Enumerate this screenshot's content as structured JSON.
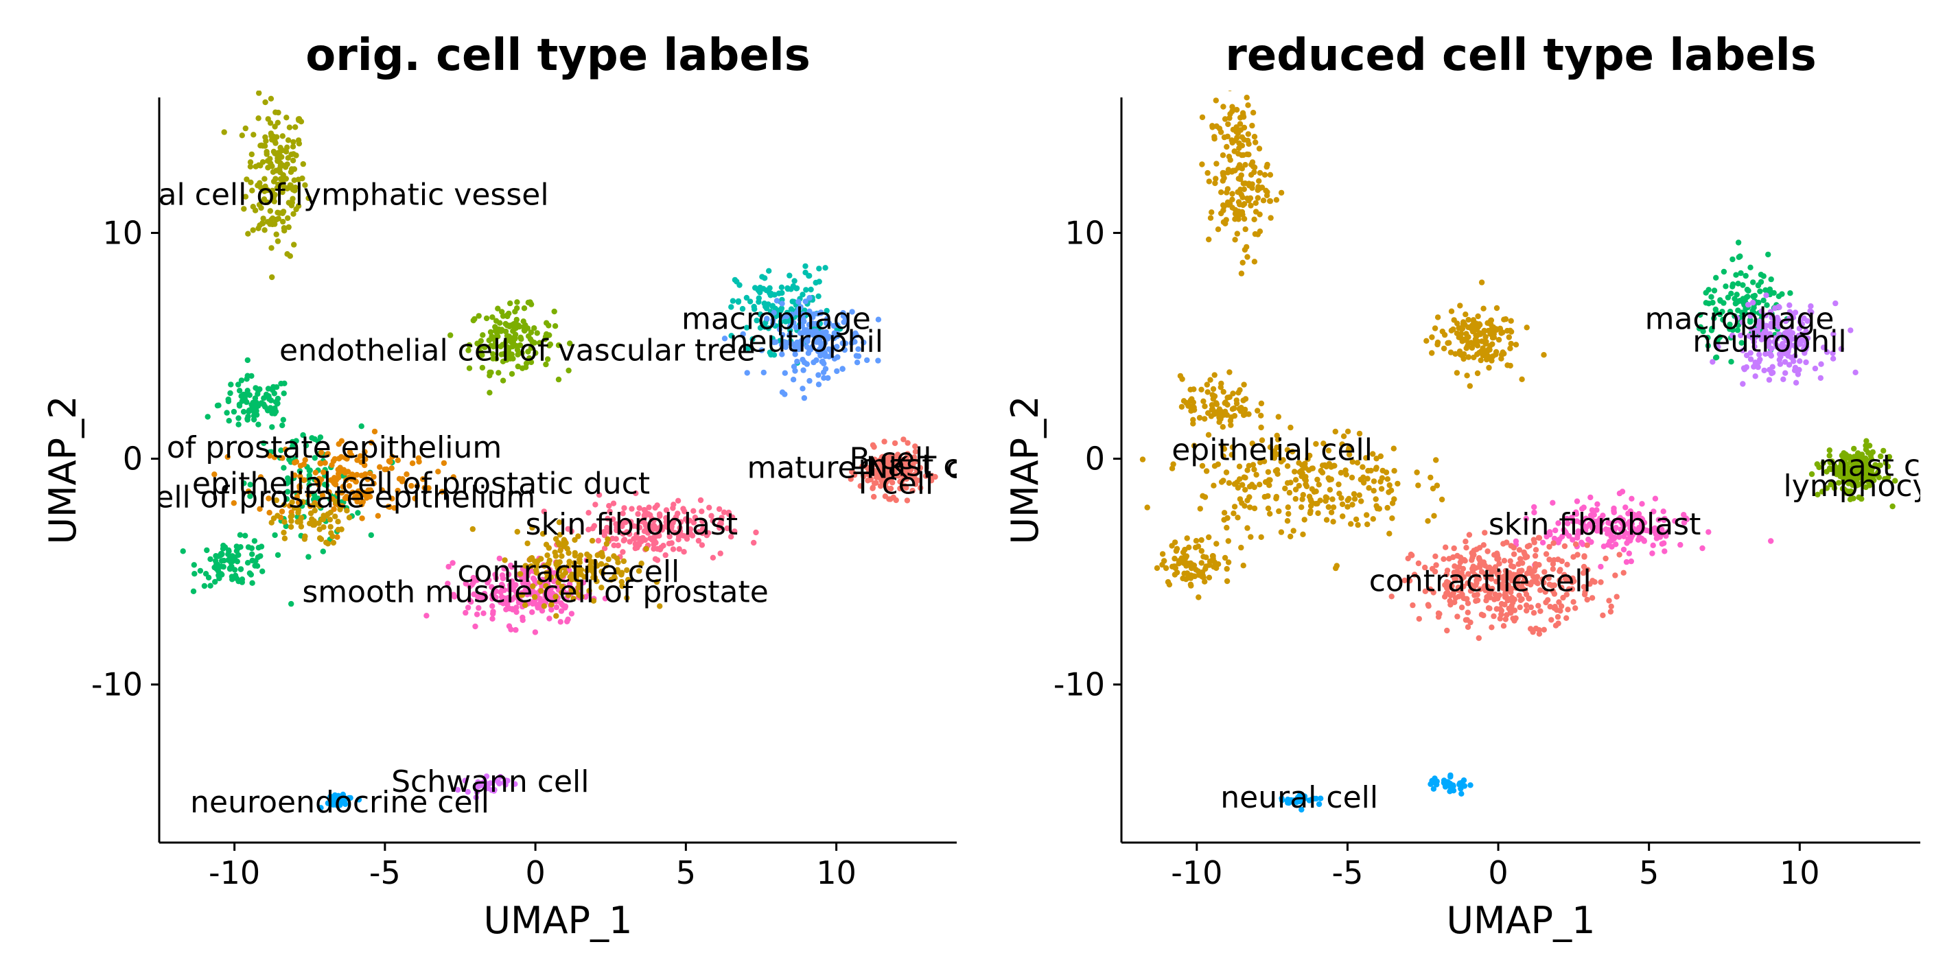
{
  "chart_data": [
    {
      "type": "scatter",
      "title": "orig. cell type labels",
      "xlabel": "UMAP_1",
      "ylabel": "UMAP_2",
      "xlim": [
        -12.5,
        14
      ],
      "ylim": [
        -17,
        16
      ],
      "xticks": [
        -10,
        -5,
        0,
        5,
        10
      ],
      "yticks": [
        -10,
        0,
        10
      ],
      "xtick_labels": [
        "-10",
        "-5",
        "0",
        "5",
        "10"
      ],
      "ytick_labels": [
        "-10",
        "0",
        "10"
      ],
      "grid": false,
      "legend": "none",
      "clusters": [
        {
          "color": "#A3A500",
          "center": [
            -8.6,
            12.5
          ],
          "spread": [
            0.5,
            1.7
          ],
          "n": 180
        },
        {
          "color": "#7CAE00",
          "center": [
            -0.8,
            5.3
          ],
          "spread": [
            0.7,
            0.7
          ],
          "n": 150
        },
        {
          "color": "#00BE67",
          "center": [
            -9.3,
            2.4
          ],
          "spread": [
            0.6,
            0.6
          ],
          "n": 90
        },
        {
          "color": "#00BE67",
          "center": [
            -10,
            -4.6
          ],
          "spread": [
            0.6,
            0.5
          ],
          "n": 90
        },
        {
          "color": "#00BE67",
          "center": [
            -7.6,
            -1.2
          ],
          "spread": [
            0.9,
            1.3
          ],
          "n": 90
        },
        {
          "color": "#E58700",
          "center": [
            -6.3,
            -0.9
          ],
          "spread": [
            1.5,
            0.9
          ],
          "n": 160
        },
        {
          "color": "#C99800",
          "center": [
            -7.6,
            -2.8
          ],
          "spread": [
            0.6,
            0.5
          ],
          "n": 60
        },
        {
          "color": "#00C0AF",
          "center": [
            8.3,
            6.6
          ],
          "spread": [
            0.8,
            0.9
          ],
          "n": 140
        },
        {
          "color": "#619CFF",
          "center": [
            9.3,
            5.2
          ],
          "spread": [
            0.8,
            0.8
          ],
          "n": 180
        },
        {
          "color": "#F8766D",
          "center": [
            11.8,
            -0.6
          ],
          "spread": [
            0.5,
            0.5
          ],
          "n": 200
        },
        {
          "color": "#FF6C91",
          "center": [
            3.9,
            -3.1
          ],
          "spread": [
            1.2,
            0.6
          ],
          "n": 200
        },
        {
          "color": "#FF61C3",
          "center": [
            -0.3,
            -5.9
          ],
          "spread": [
            1.0,
            0.7
          ],
          "n": 220
        },
        {
          "color": "#C99800",
          "center": [
            1.3,
            -4.8
          ],
          "spread": [
            1.0,
            0.8
          ],
          "n": 160
        },
        {
          "color": "#00A9FF",
          "center": [
            -6.6,
            -15.1
          ],
          "spread": [
            0.35,
            0.15
          ],
          "n": 30
        },
        {
          "color": "#DB72FB",
          "center": [
            -1.6,
            -14.4
          ],
          "spread": [
            0.35,
            0.2
          ],
          "n": 30
        }
      ],
      "labels": [
        {
          "text": "endothelial cell of lymphatic vessel",
          "x": -8.4,
          "y": 11.7
        },
        {
          "text": "endothelial cell of vascular tree",
          "x": -0.6,
          "y": 4.8
        },
        {
          "text": "macrophage",
          "x": 8.0,
          "y": 6.2
        },
        {
          "text": "neutrophil",
          "x": 9.0,
          "y": 5.2
        },
        {
          "text": "basal cell of prostate epithelium",
          "x": -9.2,
          "y": 0.5
        },
        {
          "text": "epithelial cell of prostatic duct",
          "x": -3.8,
          "y": -1.1
        },
        {
          "text": "luminal cell of prostate epithelium",
          "x": -8.6,
          "y": -1.7
        },
        {
          "text": "mature NK T cell",
          "x": 11.2,
          "y": -0.4
        },
        {
          "text": "B cell",
          "x": 11.8,
          "y": 0.0
        },
        {
          "text": "mast cell",
          "x": 13.0,
          "y": -0.3
        },
        {
          "text": "T cell",
          "x": 11.9,
          "y": -1.1
        },
        {
          "text": "skin fibroblast",
          "x": 3.2,
          "y": -2.9
        },
        {
          "text": "contractile cell",
          "x": 1.1,
          "y": -5.0
        },
        {
          "text": "smooth muscle cell of prostate",
          "x": 0.0,
          "y": -5.9
        },
        {
          "text": "Schwann cell",
          "x": -1.5,
          "y": -14.3
        },
        {
          "text": "neuroendocrine cell",
          "x": -6.5,
          "y": -15.2
        }
      ]
    },
    {
      "type": "scatter",
      "title": "reduced cell type labels",
      "xlabel": "UMAP_1",
      "ylabel": "UMAP_2",
      "xlim": [
        -12.5,
        14
      ],
      "ylim": [
        -17,
        16
      ],
      "xticks": [
        -10,
        -5,
        0,
        5,
        10
      ],
      "yticks": [
        -10,
        0,
        10
      ],
      "xtick_labels": [
        "-10",
        "-5",
        "0",
        "5",
        "10"
      ],
      "ytick_labels": [
        "-10",
        "0",
        "10"
      ],
      "grid": false,
      "legend": "none",
      "clusters": [
        {
          "color": "#CD9600",
          "center": [
            -8.6,
            12.5
          ],
          "spread": [
            0.5,
            1.7
          ],
          "n": 180
        },
        {
          "color": "#CD9600",
          "center": [
            -0.8,
            5.3
          ],
          "spread": [
            0.7,
            0.7
          ],
          "n": 150
        },
        {
          "color": "#CD9600",
          "center": [
            -9.3,
            2.4
          ],
          "spread": [
            0.6,
            0.6
          ],
          "n": 90
        },
        {
          "color": "#CD9600",
          "center": [
            -10,
            -4.6
          ],
          "spread": [
            0.6,
            0.5
          ],
          "n": 90
        },
        {
          "color": "#CD9600",
          "center": [
            -6.5,
            -1.1
          ],
          "spread": [
            1.8,
            1.2
          ],
          "n": 260
        },
        {
          "color": "#00BE67",
          "center": [
            8.3,
            6.6
          ],
          "spread": [
            0.8,
            0.9
          ],
          "n": 140
        },
        {
          "color": "#C77CFF",
          "center": [
            9.3,
            5.2
          ],
          "spread": [
            0.8,
            0.8
          ],
          "n": 180
        },
        {
          "color": "#7CAE00",
          "center": [
            11.8,
            -0.6
          ],
          "spread": [
            0.5,
            0.5
          ],
          "n": 200
        },
        {
          "color": "#FF61CC",
          "center": [
            3.9,
            -3.1
          ],
          "spread": [
            1.2,
            0.6
          ],
          "n": 200
        },
        {
          "color": "#F8766D",
          "center": [
            0.3,
            -5.5
          ],
          "spread": [
            1.5,
            0.9
          ],
          "n": 380
        },
        {
          "color": "#00A9FF",
          "center": [
            -6.6,
            -15.1
          ],
          "spread": [
            0.35,
            0.15
          ],
          "n": 30
        },
        {
          "color": "#00A9FF",
          "center": [
            -1.6,
            -14.4
          ],
          "spread": [
            0.35,
            0.2
          ],
          "n": 30
        }
      ],
      "labels": [
        {
          "text": "macrophage",
          "x": 8.0,
          "y": 6.2
        },
        {
          "text": "neutrophil",
          "x": 9.0,
          "y": 5.2
        },
        {
          "text": "epithelial cell",
          "x": -7.5,
          "y": 0.4
        },
        {
          "text": "mast cell",
          "x": 12.9,
          "y": -0.3
        },
        {
          "text": "lymphocyte",
          "x": 12.4,
          "y": -1.2
        },
        {
          "text": "skin fibroblast",
          "x": 3.2,
          "y": -2.9
        },
        {
          "text": "contractile cell",
          "x": -0.6,
          "y": -5.4
        },
        {
          "text": "neural cell",
          "x": -6.6,
          "y": -15.0
        }
      ]
    }
  ]
}
